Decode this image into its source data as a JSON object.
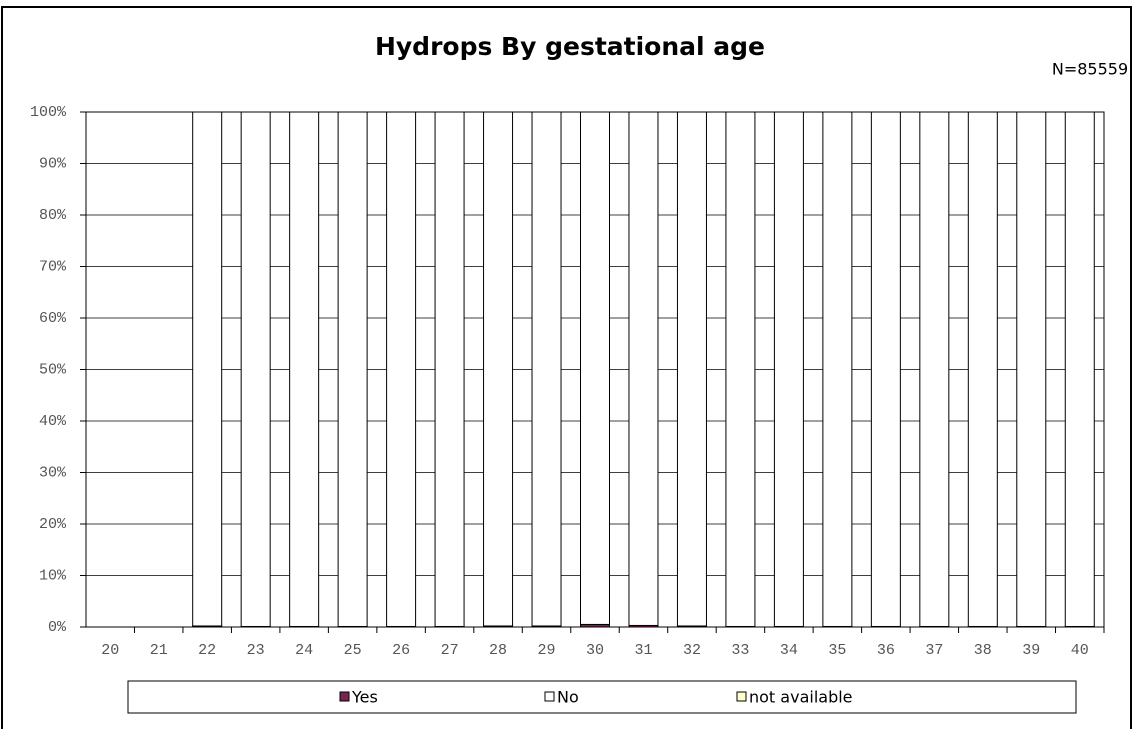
{
  "chart_data": {
    "type": "stacked_bar",
    "title": "Hydrops By gestational age",
    "annotation": "N=85559",
    "categories": [
      "20",
      "21",
      "22",
      "23",
      "24",
      "25",
      "26",
      "27",
      "28",
      "29",
      "30",
      "31",
      "32",
      "33",
      "34",
      "35",
      "36",
      "37",
      "38",
      "39",
      "40"
    ],
    "series": [
      {
        "name": "Yes",
        "color": "#7b2350",
        "values": [
          0,
          0,
          0.2,
          0.1,
          0.1,
          0.1,
          0.1,
          0.1,
          0.2,
          0.2,
          0.5,
          0.3,
          0.2,
          0.1,
          0.1,
          0.1,
          0.1,
          0.1,
          0.1,
          0.1,
          0.1
        ]
      },
      {
        "name": "No",
        "color": "#ffffff",
        "values": [
          0,
          0,
          99.8,
          99.9,
          99.9,
          99.9,
          99.9,
          99.9,
          99.8,
          99.8,
          99.5,
          99.7,
          99.8,
          99.9,
          99.9,
          99.9,
          99.9,
          99.9,
          99.9,
          99.9,
          99.9
        ]
      },
      {
        "name": "not available",
        "color": "#ffffcc",
        "values": [
          0,
          0,
          0,
          0,
          0,
          0,
          0,
          0,
          0,
          0,
          0,
          0,
          0,
          0,
          0,
          0,
          0,
          0,
          0,
          0,
          0
        ]
      }
    ],
    "ylim": [
      0,
      100
    ],
    "yticks": [
      {
        "value": 0,
        "label": "0%"
      },
      {
        "value": 10,
        "label": "10%"
      },
      {
        "value": 20,
        "label": "20%"
      },
      {
        "value": 30,
        "label": "30%"
      },
      {
        "value": 40,
        "label": "40%"
      },
      {
        "value": 50,
        "label": "50%"
      },
      {
        "value": 60,
        "label": "60%"
      },
      {
        "value": 70,
        "label": "70%"
      },
      {
        "value": 80,
        "label": "80%"
      },
      {
        "value": 90,
        "label": "90%"
      },
      {
        "value": 100,
        "label": "100%"
      }
    ],
    "grid": true,
    "legend": "bottom"
  }
}
